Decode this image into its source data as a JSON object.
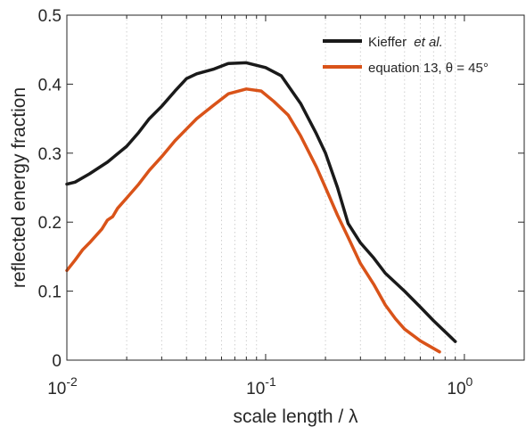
{
  "chart_data": {
    "type": "line",
    "xlabel": "scale length / λ",
    "ylabel": "reflected energy fraction",
    "xscale": "log",
    "xlim": [
      0.01,
      2
    ],
    "ylim": [
      0,
      0.5
    ],
    "grid": "vertical minor, dotted",
    "legend_position": "top-right",
    "x_ticks": [
      {
        "base": "10",
        "exp": "-2"
      },
      {
        "base": "10",
        "exp": "-1"
      },
      {
        "base": "10",
        "exp": "0"
      }
    ],
    "y_ticks": [
      "0",
      "0.1",
      "0.2",
      "0.3",
      "0.4",
      "0.5"
    ],
    "series": [
      {
        "name": "Kieffer",
        "name_italic": "et al.",
        "color": "#1a1a1a",
        "x": [
          0.01,
          0.011,
          0.013,
          0.016,
          0.02,
          0.023,
          0.026,
          0.03,
          0.035,
          0.04,
          0.045,
          0.055,
          0.065,
          0.08,
          0.1,
          0.12,
          0.15,
          0.18,
          0.2,
          0.23,
          0.26,
          0.3,
          0.35,
          0.4,
          0.5,
          0.6,
          0.7,
          0.9
        ],
        "y": [
          0.255,
          0.258,
          0.27,
          0.287,
          0.31,
          0.33,
          0.35,
          0.368,
          0.39,
          0.408,
          0.415,
          0.422,
          0.43,
          0.431,
          0.424,
          0.412,
          0.372,
          0.328,
          0.3,
          0.25,
          0.198,
          0.17,
          0.148,
          0.126,
          0.1,
          0.077,
          0.057,
          0.027
        ]
      },
      {
        "name": "equation 13, θ = 45°",
        "color": "#d95319",
        "x": [
          0.01,
          0.011,
          0.012,
          0.013,
          0.015,
          0.016,
          0.017,
          0.018,
          0.02,
          0.023,
          0.026,
          0.03,
          0.035,
          0.04,
          0.045,
          0.055,
          0.065,
          0.08,
          0.095,
          0.11,
          0.13,
          0.15,
          0.18,
          0.2,
          0.23,
          0.26,
          0.3,
          0.35,
          0.4,
          0.45,
          0.5,
          0.6,
          0.75
        ],
        "y": [
          0.13,
          0.145,
          0.16,
          0.17,
          0.19,
          0.203,
          0.208,
          0.22,
          0.235,
          0.255,
          0.275,
          0.295,
          0.318,
          0.335,
          0.35,
          0.37,
          0.386,
          0.393,
          0.39,
          0.375,
          0.355,
          0.325,
          0.28,
          0.25,
          0.21,
          0.178,
          0.14,
          0.11,
          0.08,
          0.06,
          0.045,
          0.028,
          0.012
        ]
      }
    ]
  }
}
